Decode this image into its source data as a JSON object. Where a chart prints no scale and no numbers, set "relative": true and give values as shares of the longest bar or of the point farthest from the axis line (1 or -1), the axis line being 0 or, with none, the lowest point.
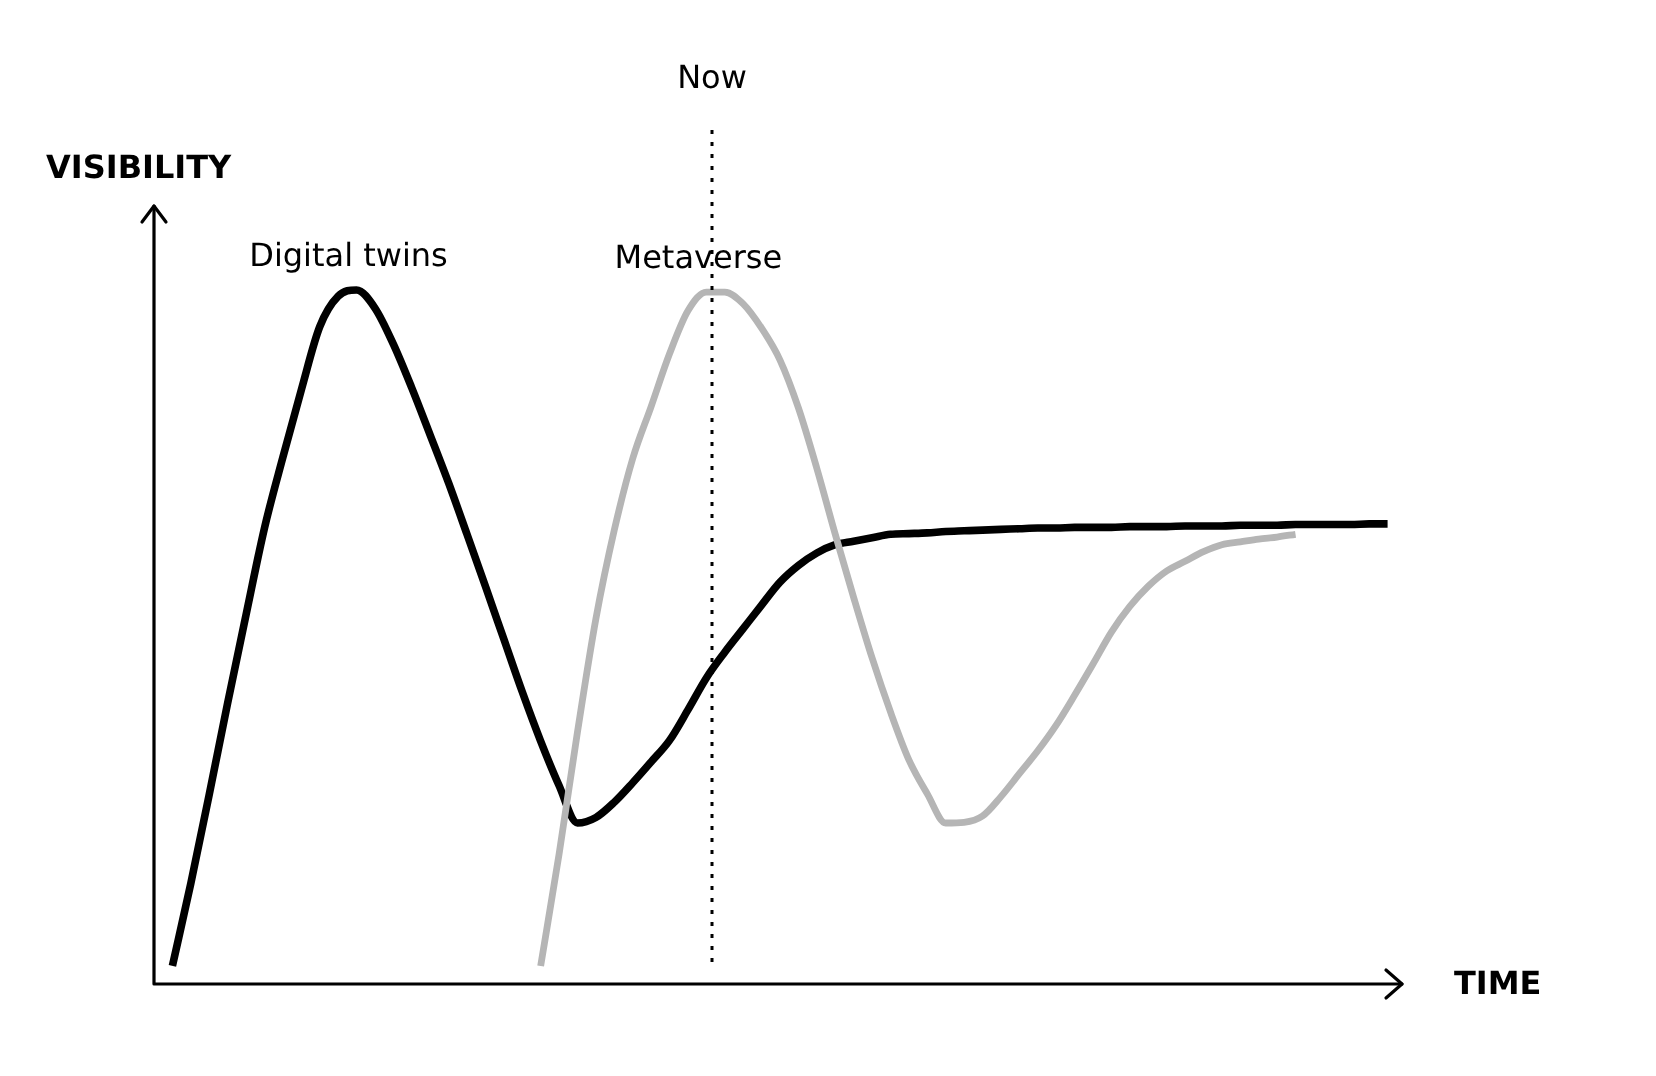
{
  "chart_data": {
    "type": "line",
    "relative": true,
    "xlabel": "TIME",
    "ylabel": "VISIBILITY",
    "marker": "none",
    "annotations": [
      "Now"
    ],
    "categories": [
      null,
      null,
      null,
      null,
      null,
      null,
      null,
      null,
      null,
      null,
      null,
      null,
      null,
      null,
      null,
      null,
      null,
      null,
      null,
      null,
      null,
      null,
      null,
      null,
      null,
      null,
      null,
      null,
      null,
      null,
      null,
      null,
      null,
      null,
      null,
      null,
      null,
      null,
      null,
      null,
      null,
      null,
      null,
      null,
      null,
      null,
      null,
      null,
      null,
      null,
      null,
      null,
      null,
      null,
      null,
      null,
      null,
      null,
      null,
      null,
      null,
      null,
      null,
      null,
      null,
      null,
      null,
      null,
      null
    ],
    "series": [
      {
        "name": "Digital twins",
        "color": "#000000",
        "values": [
          null,
          0.026,
          0.145,
          0.273,
          0.405,
          0.532,
          0.657,
          0.759,
          0.856,
          0.947,
          0.991,
          1,
          0.974,
          0.922,
          0.859,
          0.791,
          0.722,
          0.648,
          0.573,
          0.497,
          0.421,
          0.35,
          0.286,
          0.232,
          0.24,
          0.262,
          0.29,
          0.32,
          0.351,
          0.395,
          0.441,
          0.478,
          0.512,
          0.546,
          0.579,
          0.603,
          0.621,
          0.633,
          0.638,
          0.643,
          0.648,
          0.649,
          0.65,
          0.652,
          0.653,
          0.654,
          0.655,
          0.656,
          0.657,
          0.657,
          0.658,
          0.658,
          0.658,
          0.659,
          0.659,
          0.659,
          0.66,
          0.66,
          0.66,
          0.661,
          0.661,
          0.661,
          0.662,
          0.662,
          0.662,
          0.662,
          0.663,
          0.663,
          null
        ]
      },
      {
        "name": "Metaverse",
        "color": "#b5b5b5",
        "values": [
          null,
          null,
          null,
          null,
          null,
          null,
          null,
          null,
          null,
          null,
          null,
          null,
          null,
          null,
          null,
          null,
          null,
          null,
          null,
          null,
          null,
          0.026,
          0.187,
          0.363,
          0.526,
          0.654,
          0.757,
          0.832,
          0.908,
          0.97,
          0.997,
          0.997,
          0.98,
          0.945,
          0.899,
          0.83,
          0.743,
          0.648,
          0.557,
          0.47,
          0.392,
          0.323,
          0.274,
          0.232,
          0.233,
          0.242,
          0.27,
          0.303,
          0.336,
          0.373,
          0.416,
          0.461,
          0.507,
          0.544,
          0.573,
          0.595,
          0.609,
          0.623,
          0.633,
          0.637,
          0.641,
          0.644,
          0.648,
          null,
          null,
          null,
          null,
          null,
          null
        ]
      }
    ]
  }
}
